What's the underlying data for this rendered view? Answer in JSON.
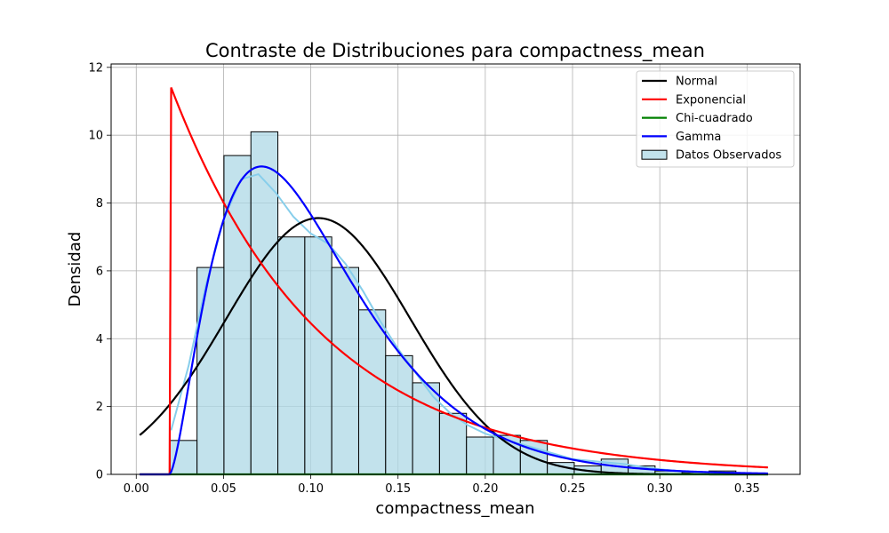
{
  "chart_data": {
    "type": "histogram",
    "title": "Contraste de Distribuciones para compactness_mean",
    "xlabel": "compactness_mean",
    "ylabel": "Densidad",
    "xlim": [
      -0.0144,
      0.3804
    ],
    "ylim": [
      0,
      12.1
    ],
    "xticks": [
      "0.00",
      "0.05",
      "0.10",
      "0.15",
      "0.20",
      "0.25",
      "0.30",
      "0.35"
    ],
    "yticks": [
      "0",
      "2",
      "4",
      "6",
      "8",
      "10",
      "12"
    ],
    "grid": true,
    "legend_position": "top-right",
    "histogram": {
      "name": "Datos Observados",
      "color": "#add8e6",
      "edges": [
        0.01938,
        0.03482,
        0.05026,
        0.0657,
        0.08114,
        0.09658,
        0.11202,
        0.12746,
        0.1429,
        0.15834,
        0.17378,
        0.18922,
        0.20466,
        0.2201,
        0.23554,
        0.25098,
        0.26642,
        0.28186,
        0.2973,
        0.31274,
        0.32818,
        0.34362
      ],
      "values": [
        1.0,
        6.1,
        9.4,
        10.1,
        7.0,
        7.0,
        6.1,
        4.85,
        3.5,
        2.7,
        1.8,
        1.1,
        1.15,
        1.0,
        0.35,
        0.25,
        0.45,
        0.25,
        0.1,
        0.05,
        0.1
      ]
    },
    "kde": {
      "color": "#87ceeb",
      "points": [
        [
          0.02,
          1.3
        ],
        [
          0.03,
          3.2
        ],
        [
          0.04,
          5.6
        ],
        [
          0.05,
          7.5
        ],
        [
          0.06,
          8.7
        ],
        [
          0.07,
          8.85
        ],
        [
          0.08,
          8.3
        ],
        [
          0.09,
          7.6
        ],
        [
          0.1,
          7.1
        ],
        [
          0.11,
          6.8
        ],
        [
          0.12,
          6.2
        ],
        [
          0.13,
          5.4
        ],
        [
          0.14,
          4.5
        ],
        [
          0.15,
          3.7
        ],
        [
          0.16,
          3.0
        ],
        [
          0.17,
          2.3
        ],
        [
          0.18,
          1.8
        ],
        [
          0.19,
          1.45
        ],
        [
          0.2,
          1.2
        ],
        [
          0.21,
          1.05
        ],
        [
          0.22,
          0.9
        ],
        [
          0.23,
          0.75
        ],
        [
          0.24,
          0.6
        ],
        [
          0.25,
          0.45
        ],
        [
          0.26,
          0.4
        ],
        [
          0.27,
          0.35
        ],
        [
          0.28,
          0.3
        ],
        [
          0.29,
          0.22
        ],
        [
          0.3,
          0.15
        ],
        [
          0.31,
          0.1
        ],
        [
          0.32,
          0.07
        ],
        [
          0.33,
          0.06
        ],
        [
          0.34,
          0.05
        ]
      ]
    },
    "series": [
      {
        "name": "Normal",
        "color": "#000000",
        "distribution": "normal",
        "params": {
          "mean": 0.1043,
          "std": 0.0528
        },
        "x_range": [
          0.002,
          0.362
        ]
      },
      {
        "name": "Exponencial",
        "color": "#ff0000",
        "distribution": "exponential",
        "params": {
          "loc": 0.0193,
          "scale": 0.0851,
          "peak": 11.5
        },
        "x_range": [
          0.002,
          0.362
        ]
      },
      {
        "name": "Chi-cuadrado",
        "color": "#008000",
        "distribution": "chi-square",
        "params": {
          "value": 0.0
        },
        "x_range": [
          0.002,
          0.362
        ]
      },
      {
        "name": "Gamma",
        "color": "#0000ff",
        "distribution": "gamma",
        "params": {
          "shape": 2.6,
          "loc": 0.019,
          "scale": 0.033
        },
        "x_range": [
          0.002,
          0.362
        ]
      }
    ]
  }
}
